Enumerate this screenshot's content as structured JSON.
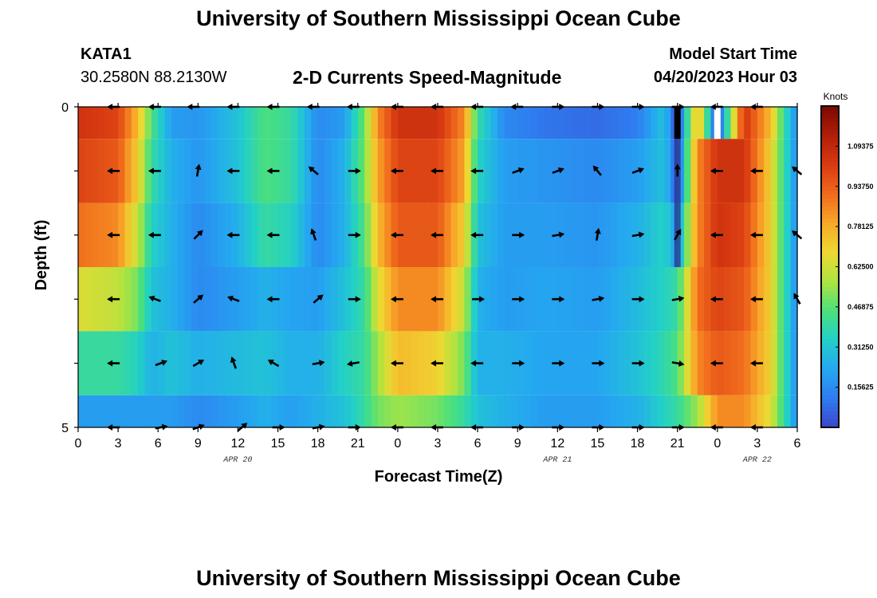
{
  "page": {
    "title": "University of Southern Mississippi Ocean Cube",
    "title_repeat": "University of Southern Mississippi Ocean Cube",
    "station_id": "KATA1",
    "station_coords": "30.2580N  88.2130W",
    "model_start_label": "Model Start Time",
    "model_start_value": "04/20/2023 Hour 03"
  },
  "chart_data": {
    "type": "heatmap",
    "title": "2-D Currents Speed-Magnitude",
    "xlabel": "Forecast Time(Z)",
    "ylabel": "Depth (ft)",
    "x_ticks": [
      "0",
      "3",
      "6",
      "9",
      "12",
      "15",
      "18",
      "21",
      "0",
      "3",
      "6",
      "9",
      "12",
      "15",
      "18",
      "21",
      "0",
      "3",
      "6"
    ],
    "x_tick_hours": [
      0,
      3,
      6,
      9,
      12,
      15,
      18,
      21,
      24,
      27,
      30,
      33,
      36,
      39,
      42,
      45,
      48,
      51,
      54
    ],
    "date_labels": [
      {
        "text": "APR 20",
        "hour": 12
      },
      {
        "text": "APR 21",
        "hour": 36
      },
      {
        "text": "APR 22",
        "hour": 51
      }
    ],
    "x_range": [
      0,
      54
    ],
    "y_tick_labels": [
      "0",
      "5"
    ],
    "ylim": [
      0,
      5
    ],
    "depth_layers_ft": [
      0,
      1,
      2,
      3,
      4,
      5
    ],
    "colorbar": {
      "label": "Knots",
      "range": [
        0,
        1.25
      ],
      "tick_values": [
        0.15625,
        0.3125,
        0.46875,
        0.625,
        0.78125,
        0.9375,
        1.09375
      ],
      "tick_labels": [
        "0.15625",
        "0.31250",
        "0.46875",
        "0.62500",
        "0.78125",
        "0.93750",
        "1.09375"
      ],
      "colors": [
        "#3c46c8",
        "#2f7cf0",
        "#24a8f0",
        "#22d0c8",
        "#4ce07a",
        "#aee440",
        "#eed832",
        "#f8a828",
        "#f06a1c",
        "#d83a12",
        "#b01e08",
        "#7a0800"
      ]
    },
    "speed_knots_columns": [
      {
        "hour": 0,
        "values": [
          1.05,
          1.0,
          0.9,
          0.65,
          0.4,
          0.2
        ]
      },
      {
        "hour": 3,
        "values": [
          1.0,
          0.95,
          0.85,
          0.6,
          0.4,
          0.2
        ]
      },
      {
        "hour": 4.5,
        "values": [
          0.75,
          0.7,
          0.6,
          0.5,
          0.35,
          0.2
        ]
      },
      {
        "hour": 5.5,
        "values": [
          0.45,
          0.4,
          0.35,
          0.3,
          0.25,
          0.2
        ]
      },
      {
        "hour": 7,
        "values": [
          0.2,
          0.25,
          0.25,
          0.25,
          0.3,
          0.2
        ]
      },
      {
        "hour": 9,
        "values": [
          0.18,
          0.18,
          0.15,
          0.15,
          0.25,
          0.15
        ]
      },
      {
        "hour": 12,
        "values": [
          0.3,
          0.3,
          0.25,
          0.2,
          0.28,
          0.2
        ]
      },
      {
        "hour": 14,
        "values": [
          0.45,
          0.45,
          0.4,
          0.25,
          0.3,
          0.25
        ]
      },
      {
        "hour": 16,
        "values": [
          0.4,
          0.4,
          0.35,
          0.22,
          0.25,
          0.2
        ]
      },
      {
        "hour": 18,
        "values": [
          0.15,
          0.15,
          0.15,
          0.2,
          0.25,
          0.25
        ]
      },
      {
        "hour": 20,
        "values": [
          0.2,
          0.25,
          0.25,
          0.3,
          0.35,
          0.3
        ]
      },
      {
        "hour": 21.5,
        "values": [
          0.5,
          0.5,
          0.45,
          0.4,
          0.4,
          0.4
        ]
      },
      {
        "hour": 22.5,
        "values": [
          0.85,
          0.8,
          0.75,
          0.65,
          0.55,
          0.5
        ]
      },
      {
        "hour": 24,
        "values": [
          1.05,
          1.0,
          0.95,
          0.85,
          0.75,
          0.55
        ]
      },
      {
        "hour": 27,
        "values": [
          1.05,
          1.0,
          0.95,
          0.85,
          0.7,
          0.5
        ]
      },
      {
        "hour": 29,
        "values": [
          0.85,
          0.8,
          0.7,
          0.6,
          0.5,
          0.4
        ]
      },
      {
        "hour": 30,
        "values": [
          0.4,
          0.35,
          0.3,
          0.25,
          0.25,
          0.3
        ]
      },
      {
        "hour": 32,
        "values": [
          0.15,
          0.2,
          0.2,
          0.2,
          0.25,
          0.25
        ]
      },
      {
        "hour": 35,
        "values": [
          0.1,
          0.18,
          0.2,
          0.22,
          0.22,
          0.2
        ]
      },
      {
        "hour": 39,
        "values": [
          0.08,
          0.15,
          0.18,
          0.2,
          0.22,
          0.2
        ]
      },
      {
        "hour": 42,
        "values": [
          0.12,
          0.2,
          0.25,
          0.28,
          0.3,
          0.25
        ]
      },
      {
        "hour": 44,
        "values": [
          0.3,
          0.3,
          0.35,
          0.35,
          0.38,
          0.35
        ]
      },
      {
        "hour": 45,
        "values": [
          0.0,
          0.05,
          0.2,
          0.4,
          0.45,
          0.4
        ]
      },
      {
        "hour": 46.5,
        "values": [
          0.8,
          0.85,
          0.85,
          0.9,
          0.85,
          0.55
        ]
      },
      {
        "hour": 48,
        "values": [
          0.0,
          1.05,
          1.05,
          1.0,
          0.95,
          0.85
        ]
      },
      {
        "hour": 50,
        "values": [
          1.05,
          1.05,
          1.0,
          0.95,
          0.9,
          0.85
        ]
      },
      {
        "hour": 52,
        "values": [
          0.75,
          0.7,
          0.7,
          0.7,
          0.7,
          0.65
        ]
      },
      {
        "hour": 53,
        "values": [
          0.4,
          0.4,
          0.4,
          0.4,
          0.4,
          0.4
        ]
      },
      {
        "hour": 54,
        "values": [
          0.15,
          0.15,
          0.15,
          0.15,
          0.15,
          0.15
        ]
      }
    ],
    "missing_cells_note_hours": [
      45,
      48
    ],
    "direction_arrows": [
      {
        "depth_ft": 0,
        "hours": [
          2.7,
          5.8,
          8.7,
          11.7,
          14.7,
          17.7,
          20.7,
          24,
          27,
          30,
          33,
          36,
          39,
          42,
          45,
          48,
          51
        ],
        "angles_deg": [
          180,
          180,
          180,
          180,
          180,
          180,
          180,
          180,
          180,
          180,
          180,
          0,
          0,
          0,
          0,
          180,
          180
        ]
      },
      {
        "depth_ft": 1,
        "hours": [
          2.7,
          5.8,
          9,
          11.7,
          14.7,
          17.7,
          20.7,
          24,
          27,
          30,
          33,
          36,
          39,
          42,
          45,
          48,
          51,
          54
        ],
        "angles_deg": [
          180,
          180,
          80,
          180,
          180,
          140,
          0,
          180,
          180,
          180,
          20,
          20,
          130,
          20,
          90,
          180,
          180,
          140
        ]
      },
      {
        "depth_ft": 2,
        "hours": [
          2.7,
          5.8,
          9,
          11.7,
          14.7,
          17.7,
          20.7,
          24,
          27,
          30,
          33,
          36,
          39,
          42,
          45,
          48,
          51,
          54
        ],
        "angles_deg": [
          180,
          180,
          45,
          180,
          180,
          110,
          0,
          180,
          180,
          180,
          0,
          10,
          80,
          10,
          60,
          180,
          180,
          140
        ]
      },
      {
        "depth_ft": 3,
        "hours": [
          2.7,
          5.8,
          9,
          11.7,
          14.7,
          18,
          20.7,
          24,
          27,
          30,
          33,
          36,
          39,
          42,
          45,
          48,
          51,
          54
        ],
        "angles_deg": [
          180,
          160,
          40,
          160,
          180,
          40,
          0,
          180,
          180,
          0,
          0,
          0,
          10,
          0,
          10,
          180,
          180,
          120
        ]
      },
      {
        "depth_ft": 4,
        "hours": [
          2.7,
          6.2,
          9,
          11.7,
          14.7,
          18,
          20.7,
          24,
          27,
          30,
          33,
          36,
          39,
          42,
          45,
          48,
          51
        ],
        "angles_deg": [
          180,
          20,
          30,
          110,
          150,
          10,
          190,
          180,
          180,
          180,
          0,
          0,
          0,
          0,
          350,
          180,
          180
        ]
      },
      {
        "depth_ft": 5,
        "hours": [
          2.7,
          6.2,
          9,
          12.3,
          15,
          18,
          20.7,
          24,
          27,
          30,
          33,
          36,
          39,
          42,
          45,
          48,
          51
        ],
        "angles_deg": [
          180,
          10,
          20,
          40,
          0,
          10,
          0,
          180,
          180,
          180,
          0,
          0,
          0,
          0,
          0,
          180,
          180
        ]
      }
    ]
  }
}
